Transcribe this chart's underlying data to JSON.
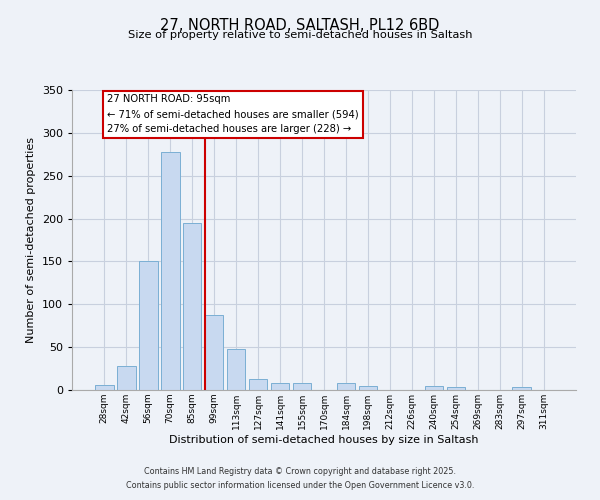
{
  "title_line1": "27, NORTH ROAD, SALTASH, PL12 6BD",
  "title_line2": "Size of property relative to semi-detached houses in Saltash",
  "xlabel": "Distribution of semi-detached houses by size in Saltash",
  "ylabel": "Number of semi-detached properties",
  "bar_labels": [
    "28sqm",
    "42sqm",
    "56sqm",
    "70sqm",
    "85sqm",
    "99sqm",
    "113sqm",
    "127sqm",
    "141sqm",
    "155sqm",
    "170sqm",
    "184sqm",
    "198sqm",
    "212sqm",
    "226sqm",
    "240sqm",
    "254sqm",
    "269sqm",
    "283sqm",
    "297sqm",
    "311sqm"
  ],
  "bar_values": [
    6,
    28,
    150,
    278,
    195,
    88,
    48,
    13,
    8,
    8,
    0,
    8,
    5,
    0,
    0,
    5,
    3,
    0,
    0,
    3,
    0
  ],
  "bar_color": "#c8d9f0",
  "bar_edge_color": "#7bafd4",
  "grid_color": "#c8d0de",
  "vline_color": "#cc0000",
  "vline_pos": 4.57,
  "annotation_title": "27 NORTH ROAD: 95sqm",
  "annotation_line1": "← 71% of semi-detached houses are smaller (594)",
  "annotation_line2": "27% of semi-detached houses are larger (228) →",
  "annotation_box_facecolor": "#ffffff",
  "annotation_box_edgecolor": "#cc0000",
  "ylim": [
    0,
    350
  ],
  "yticks": [
    0,
    50,
    100,
    150,
    200,
    250,
    300,
    350
  ],
  "footer_line1": "Contains HM Land Registry data © Crown copyright and database right 2025.",
  "footer_line2": "Contains public sector information licensed under the Open Government Licence v3.0.",
  "bg_color": "#eef2f8"
}
